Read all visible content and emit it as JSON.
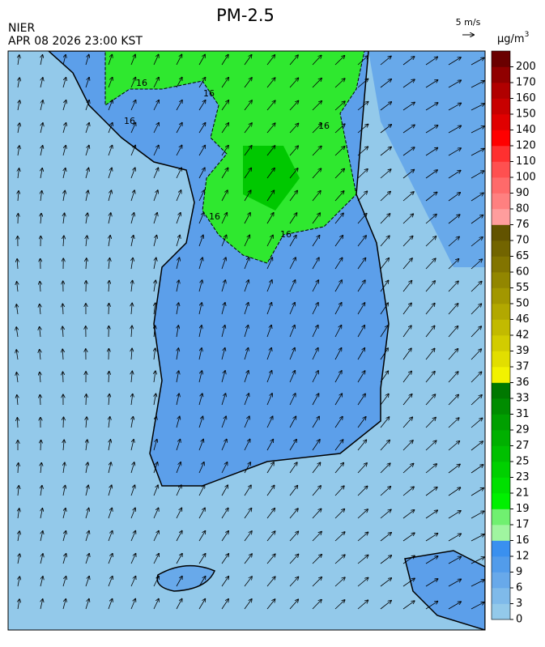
{
  "header": {
    "title": "PM-2.5",
    "source": "NIER",
    "datetime": "APR 08 2026 23:00 KST",
    "wind_scale": "5 m/s"
  },
  "colorbar": {
    "unit": "µg/m",
    "unit_sup": "3",
    "levels": [
      0,
      3,
      6,
      9,
      12,
      16,
      17,
      19,
      21,
      23,
      25,
      27,
      29,
      31,
      33,
      36,
      37,
      39,
      42,
      46,
      50,
      55,
      60,
      65,
      70,
      76,
      80,
      90,
      100,
      110,
      120,
      140,
      150,
      160,
      170,
      200
    ],
    "colors": [
      "#93c9ea",
      "#7fbaea",
      "#68a9ea",
      "#529ceb",
      "#3a90ef",
      "#a0f5a0",
      "#70f070",
      "#00f000",
      "#00e000",
      "#00d000",
      "#00c000",
      "#00b000",
      "#009f00",
      "#008c00",
      "#007800",
      "#f2f200",
      "#e2de00",
      "#d2cc00",
      "#c2ba00",
      "#b2a800",
      "#a29700",
      "#928600",
      "#827400",
      "#726400",
      "#625300",
      "#ff9d9d",
      "#ff8080",
      "#ff6a6a",
      "#ff5050",
      "#ff3030",
      "#ff0000",
      "#e00000",
      "#c80000",
      "#b00000",
      "#900000",
      "#6a0000"
    ]
  },
  "map": {
    "contour_labels": [
      16,
      16,
      16,
      16,
      16,
      16
    ]
  }
}
